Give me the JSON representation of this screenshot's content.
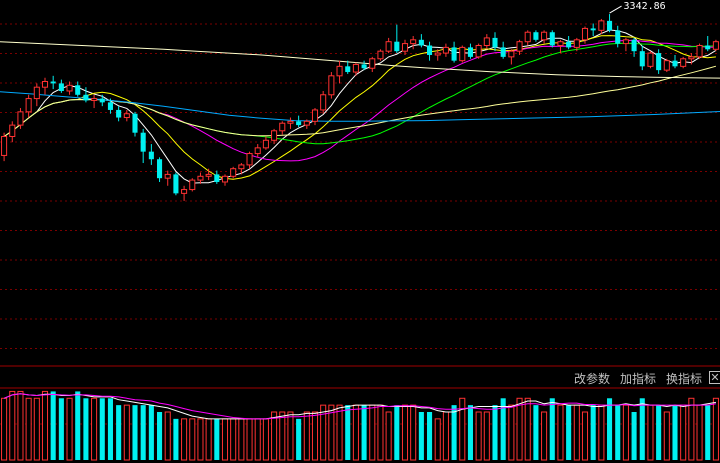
{
  "toolbar": {
    "params_label": "改参数",
    "add_indicator_label": "加指标",
    "swap_indicator_label": "换指标",
    "close_label": "✕"
  },
  "colors": {
    "up": "#ff3232",
    "down": "#00f0f0",
    "ma5": "#ffffff",
    "ma10": "#ffff00",
    "ma20": "#ff00ff",
    "ma30": "#00ff00",
    "ma60": "#ffff99",
    "ma120": "#00aaff",
    "ma250": "#ffffcc",
    "grid": "#7a0000",
    "background": "#000000"
  },
  "chart_data": {
    "type": "candlestick",
    "grid": "horizontal dashed",
    "annotations": [
      {
        "text": "3342.86",
        "label_of": "max_high"
      }
    ],
    "price_ylim": [
      2470,
      3380
    ],
    "candles": [
      [
        2970,
        3030,
        2955,
        3020
      ],
      [
        3020,
        3060,
        3005,
        3050
      ],
      [
        3050,
        3095,
        3040,
        3085
      ],
      [
        3085,
        3130,
        3070,
        3120
      ],
      [
        3120,
        3160,
        3100,
        3150
      ],
      [
        3150,
        3175,
        3130,
        3165
      ],
      [
        3165,
        3180,
        3145,
        3160
      ],
      [
        3160,
        3170,
        3135,
        3140
      ],
      [
        3140,
        3165,
        3130,
        3155
      ],
      [
        3155,
        3165,
        3125,
        3130
      ],
      [
        3130,
        3150,
        3110,
        3115
      ],
      [
        3115,
        3130,
        3095,
        3120
      ],
      [
        3120,
        3130,
        3100,
        3110
      ],
      [
        3110,
        3120,
        3080,
        3090
      ],
      [
        3090,
        3100,
        3060,
        3070
      ],
      [
        3070,
        3090,
        3060,
        3080
      ],
      [
        3080,
        3085,
        3020,
        3030
      ],
      [
        3030,
        3040,
        2950,
        2980
      ],
      [
        2980,
        3000,
        2945,
        2960
      ],
      [
        2960,
        2965,
        2900,
        2910
      ],
      [
        2910,
        2930,
        2890,
        2920
      ],
      [
        2920,
        2925,
        2865,
        2870
      ],
      [
        2870,
        2890,
        2850,
        2880
      ],
      [
        2880,
        2910,
        2875,
        2905
      ],
      [
        2905,
        2925,
        2895,
        2915
      ],
      [
        2915,
        2935,
        2905,
        2920
      ],
      [
        2920,
        2930,
        2895,
        2900
      ],
      [
        2900,
        2920,
        2890,
        2915
      ],
      [
        2915,
        2940,
        2910,
        2935
      ],
      [
        2935,
        2950,
        2920,
        2945
      ],
      [
        2945,
        2980,
        2935,
        2975
      ],
      [
        2975,
        3000,
        2965,
        2990
      ],
      [
        2990,
        3020,
        2985,
        3010
      ],
      [
        3010,
        3040,
        3000,
        3035
      ],
      [
        3035,
        3060,
        3025,
        3055
      ],
      [
        3055,
        3070,
        3040,
        3060
      ],
      [
        3060,
        3075,
        3045,
        3050
      ],
      [
        3050,
        3065,
        3040,
        3060
      ],
      [
        3060,
        3095,
        3050,
        3090
      ],
      [
        3090,
        3140,
        3080,
        3130
      ],
      [
        3130,
        3190,
        3120,
        3180
      ],
      [
        3180,
        3220,
        3160,
        3205
      ],
      [
        3205,
        3220,
        3185,
        3190
      ],
      [
        3190,
        3215,
        3180,
        3210
      ],
      [
        3210,
        3220,
        3195,
        3200
      ],
      [
        3200,
        3230,
        3190,
        3225
      ],
      [
        3225,
        3250,
        3220,
        3245
      ],
      [
        3245,
        3280,
        3240,
        3270
      ],
      [
        3270,
        3315,
        3240,
        3245
      ],
      [
        3245,
        3275,
        3235,
        3265
      ],
      [
        3265,
        3285,
        3250,
        3275
      ],
      [
        3275,
        3290,
        3255,
        3260
      ],
      [
        3260,
        3270,
        3220,
        3235
      ],
      [
        3235,
        3250,
        3220,
        3240
      ],
      [
        3240,
        3265,
        3230,
        3255
      ],
      [
        3255,
        3270,
        3215,
        3220
      ],
      [
        3220,
        3260,
        3215,
        3255
      ],
      [
        3255,
        3265,
        3225,
        3230
      ],
      [
        3230,
        3265,
        3225,
        3260
      ],
      [
        3260,
        3290,
        3250,
        3280
      ],
      [
        3280,
        3295,
        3245,
        3255
      ],
      [
        3255,
        3270,
        3225,
        3230
      ],
      [
        3230,
        3250,
        3210,
        3245
      ],
      [
        3245,
        3275,
        3235,
        3270
      ],
      [
        3270,
        3300,
        3260,
        3295
      ],
      [
        3295,
        3300,
        3270,
        3275
      ],
      [
        3275,
        3300,
        3265,
        3295
      ],
      [
        3295,
        3300,
        3255,
        3260
      ],
      [
        3260,
        3275,
        3240,
        3270
      ],
      [
        3270,
        3285,
        3250,
        3255
      ],
      [
        3255,
        3280,
        3245,
        3275
      ],
      [
        3275,
        3310,
        3265,
        3305
      ],
      [
        3305,
        3318,
        3285,
        3300
      ],
      [
        3300,
        3330,
        3290,
        3325
      ],
      [
        3325,
        3342.86,
        3295,
        3300
      ],
      [
        3300,
        3312,
        3255,
        3265
      ],
      [
        3265,
        3280,
        3245,
        3275
      ],
      [
        3275,
        3280,
        3230,
        3245
      ],
      [
        3245,
        3260,
        3195,
        3205
      ],
      [
        3205,
        3245,
        3200,
        3240
      ],
      [
        3240,
        3250,
        3185,
        3195
      ],
      [
        3195,
        3225,
        3190,
        3220
      ],
      [
        3220,
        3235,
        3200,
        3205
      ],
      [
        3205,
        3230,
        3200,
        3225
      ],
      [
        3225,
        3240,
        3210,
        3230
      ],
      [
        3230,
        3265,
        3225,
        3260
      ],
      [
        3260,
        3285,
        3245,
        3250
      ],
      [
        3250,
        3275,
        3245,
        3270
      ]
    ],
    "moving_averages": [
      {
        "name": "MA5",
        "period": 5
      },
      {
        "name": "MA10",
        "period": 10
      },
      {
        "name": "MA20",
        "period": 20
      },
      {
        "name": "MA30",
        "period": 30
      },
      {
        "name": "MA60",
        "period": 60
      },
      {
        "name": "MA120",
        "period": 120
      },
      {
        "name": "MA250",
        "period": 250
      }
    ],
    "long_ma_levels": {
      "MA120": [
        3138,
        3132,
        3125,
        3118,
        3110,
        3100,
        3088,
        3076,
        3068,
        3062,
        3060,
        3060,
        3061,
        3062,
        3064,
        3066,
        3068,
        3070,
        3072,
        3075,
        3078,
        3082,
        3086
      ],
      "MA250": [
        3270,
        3266,
        3262,
        3258,
        3254,
        3250,
        3245,
        3240,
        3235,
        3228,
        3221,
        3214,
        3207,
        3201,
        3196,
        3191,
        3187,
        3183,
        3180,
        3178,
        3176,
        3175,
        3174
      ]
    },
    "volume": [
      9,
      10,
      10,
      9,
      9,
      10,
      10,
      9,
      9,
      10,
      9,
      9,
      9,
      9,
      8,
      8,
      8,
      8,
      8,
      7,
      7,
      6,
      6,
      6,
      6,
      6,
      6,
      6,
      6,
      6,
      6,
      6,
      6,
      7,
      7,
      7,
      6,
      7,
      7,
      8,
      8,
      8,
      8,
      8,
      8,
      8,
      8,
      7,
      8,
      8,
      8,
      7,
      7,
      6,
      7,
      8,
      9,
      8,
      7,
      7,
      8,
      9,
      8,
      9,
      9,
      8,
      7,
      9,
      8,
      8,
      8,
      7,
      8,
      8,
      9,
      8,
      8,
      7,
      9,
      8,
      8,
      7,
      8,
      8,
      9,
      8,
      8,
      9
    ],
    "volume_ylim": [
      0,
      10.5
    ],
    "volume_ma": [
      {
        "name": "VOL MA5",
        "period": 5
      },
      {
        "name": "VOL MA10",
        "period": 10
      }
    ]
  }
}
